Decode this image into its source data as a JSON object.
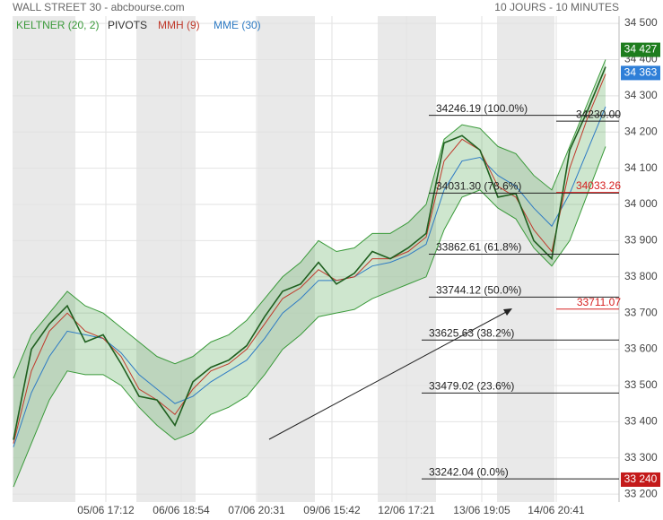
{
  "chart_data": {
    "type": "line",
    "title": "WALL STREET 30 - abcbourse.com",
    "subtitle": "10 JOURS - 10 MINUTES",
    "x": [
      0,
      1,
      2,
      3,
      4,
      5,
      6,
      7,
      8,
      9,
      10,
      11,
      12,
      13,
      14,
      15,
      16,
      17,
      18,
      19,
      20,
      21,
      22,
      23,
      24,
      25,
      26,
      27,
      28,
      29,
      30,
      31,
      32,
      33
    ],
    "xlim": [
      -0.05,
      33.75
    ],
    "xticks": [
      {
        "value": 5.15,
        "label": "05/06 17:12"
      },
      {
        "value": 9.35,
        "label": "06/06 18:54"
      },
      {
        "value": 13.55,
        "label": "07/06 20:31"
      },
      {
        "value": 17.75,
        "label": "09/06 15:42"
      },
      {
        "value": 21.9,
        "label": "12/06 17:21"
      },
      {
        "value": 26.1,
        "label": "13/06 19:05"
      },
      {
        "value": 30.25,
        "label": "14/06 20:41"
      }
    ],
    "ylim": [
      33178,
      34520
    ],
    "yticks": [
      {
        "value": 34500,
        "label": "34 500"
      },
      {
        "value": 34400,
        "label": "34 400"
      },
      {
        "value": 34300,
        "label": "34 300"
      },
      {
        "value": 34200,
        "label": "34 200"
      },
      {
        "value": 34100,
        "label": "34 100"
      },
      {
        "value": 34000,
        "label": "34 000"
      },
      {
        "value": 33900,
        "label": "33 900"
      },
      {
        "value": 33800,
        "label": "33 800"
      },
      {
        "value": 33700,
        "label": "33 700"
      },
      {
        "value": 33600,
        "label": "33 600"
      },
      {
        "value": 33500,
        "label": "33 500"
      },
      {
        "value": 33400,
        "label": "33 400"
      },
      {
        "value": 33300,
        "label": "33 300"
      },
      {
        "value": 33200,
        "label": "33 200"
      }
    ],
    "grid": true,
    "band": {
      "name": "KELTNER (20, 2)",
      "color": "#3a9a3a",
      "upper": [
        33520,
        33640,
        33700,
        33760,
        33720,
        33700,
        33660,
        33620,
        33580,
        33560,
        33580,
        33620,
        33640,
        33680,
        33740,
        33800,
        33840,
        33900,
        33870,
        33880,
        33920,
        33920,
        33950,
        34000,
        34180,
        34220,
        34210,
        34160,
        34140,
        34080,
        34040,
        34160,
        34280,
        34400
      ],
      "lower": [
        33220,
        33340,
        33460,
        33540,
        33530,
        33530,
        33500,
        33440,
        33390,
        33350,
        33370,
        33420,
        33440,
        33470,
        33530,
        33600,
        33640,
        33690,
        33700,
        33710,
        33740,
        33760,
        33780,
        33800,
        33930,
        34020,
        34040,
        33990,
        33960,
        33880,
        33830,
        33900,
        34030,
        34160
      ]
    },
    "pivots": {
      "name": "PIVOTS",
      "color": "#333333"
    },
    "series": [
      {
        "color": "#1f5f1f",
        "values": [
          33350,
          33600,
          33670,
          33720,
          33620,
          33640,
          33560,
          33470,
          33460,
          33390,
          33510,
          33550,
          33570,
          33610,
          33690,
          33760,
          33780,
          33840,
          33780,
          33810,
          33870,
          33850,
          33880,
          33920,
          34170,
          34190,
          34150,
          34020,
          34030,
          33900,
          33850,
          34150,
          34260,
          34380
        ]
      },
      {
        "name": "MMH (9)",
        "color": "#c0392b",
        "values": [
          33340,
          33540,
          33650,
          33700,
          33650,
          33630,
          33580,
          33490,
          33460,
          33420,
          33490,
          33540,
          33560,
          33600,
          33670,
          33740,
          33770,
          33820,
          33790,
          33800,
          33850,
          33850,
          33870,
          33910,
          34120,
          34180,
          34150,
          34050,
          34020,
          33930,
          33870,
          34100,
          34240,
          34360
        ]
      },
      {
        "name": "MME (30)",
        "color": "#2e7bc4",
        "values": [
          33330,
          33480,
          33580,
          33650,
          33640,
          33630,
          33590,
          33530,
          33490,
          33450,
          33470,
          33510,
          33540,
          33570,
          33630,
          33700,
          33740,
          33790,
          33790,
          33800,
          33830,
          33840,
          33860,
          33890,
          34040,
          34120,
          34130,
          34080,
          34050,
          33990,
          33940,
          34030,
          34150,
          34270
        ]
      }
    ],
    "fibonacci": [
      {
        "value": 34246.19,
        "label": "34246.19  (100.0%)"
      },
      {
        "value": 34031.3,
        "label": "34031.30  (78.6%)"
      },
      {
        "value": 33862.61,
        "label": "33862.61  (61.8%)"
      },
      {
        "value": 33744.12,
        "label": "33744.12  (50.0%)"
      },
      {
        "value": 33625.63,
        "label": "33625.63  (38.2%)"
      },
      {
        "value": 33479.02,
        "label": "33479.02  (23.6%)"
      },
      {
        "value": 33242.04,
        "label": "33242.04  (0.0%)"
      }
    ],
    "levels": [
      {
        "value": 34230.0,
        "label": "34230.00",
        "color": "#222222"
      },
      {
        "value": 34033.26,
        "label": "34033.26",
        "color": "#d62020"
      },
      {
        "value": 33711.07,
        "label": "33711.07",
        "color": "#d62020"
      }
    ],
    "price_tags": [
      {
        "value": 34427,
        "label": "34 427",
        "color": "#1e7d1e"
      },
      {
        "value": 34363,
        "label": "34 363",
        "color": "#2f7fd8"
      },
      {
        "value": 33240,
        "label": "33 240",
        "color": "#c41a1a"
      }
    ]
  }
}
